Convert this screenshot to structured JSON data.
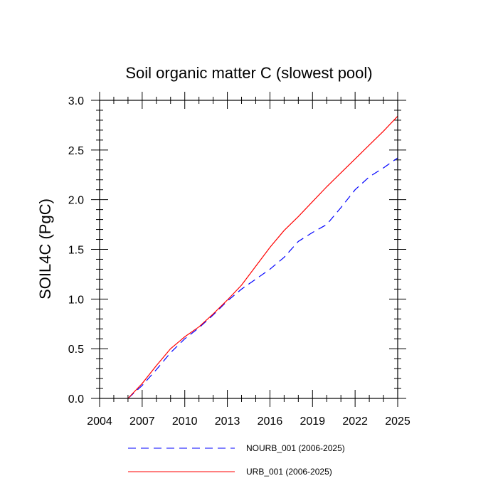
{
  "chart_data": {
    "type": "line",
    "title": "Soil organic matter C (slowest pool)",
    "xlabel": "",
    "ylabel": "SOIL4C  (PgC)",
    "xlim": [
      2004,
      2025
    ],
    "ylim": [
      0,
      3.0
    ],
    "x_ticks": [
      2004,
      2007,
      2010,
      2013,
      2016,
      2019,
      2022,
      2025
    ],
    "y_ticks": [
      0.0,
      0.5,
      1.0,
      1.5,
      2.0,
      2.5,
      3.0
    ],
    "x_tick_labels": [
      "2004",
      "2007",
      "2010",
      "2013",
      "2016",
      "2019",
      "2022",
      "2025"
    ],
    "y_tick_labels": [
      "0.0",
      "0.5",
      "1.0",
      "1.5",
      "2.0",
      "2.5",
      "3.0"
    ],
    "grid": false,
    "legend_position": "bottom",
    "series": [
      {
        "name": "NOURB_001 (2006-2025)",
        "color": "#0000ff",
        "dash": "dashed",
        "x": [
          2006,
          2007,
          2008,
          2009,
          2010,
          2011,
          2012,
          2013,
          2014,
          2015,
          2016,
          2017,
          2018,
          2019,
          2020,
          2021,
          2022,
          2023,
          2024,
          2025
        ],
        "y": [
          0.0,
          0.13,
          0.29,
          0.46,
          0.6,
          0.71,
          0.84,
          0.98,
          1.1,
          1.2,
          1.3,
          1.42,
          1.58,
          1.67,
          1.75,
          1.92,
          2.1,
          2.23,
          2.32,
          2.42
        ]
      },
      {
        "name": "URB_001 (2006-2025)",
        "color": "#ff0000",
        "dash": "solid",
        "x": [
          2006,
          2007,
          2008,
          2009,
          2010,
          2011,
          2012,
          2013,
          2014,
          2015,
          2016,
          2017,
          2018,
          2019,
          2020,
          2021,
          2022,
          2023,
          2024,
          2025
        ],
        "y": [
          0.0,
          0.15,
          0.33,
          0.5,
          0.62,
          0.72,
          0.85,
          0.99,
          1.14,
          1.33,
          1.52,
          1.69,
          1.83,
          1.98,
          2.13,
          2.27,
          2.41,
          2.55,
          2.69,
          2.84
        ]
      }
    ]
  }
}
